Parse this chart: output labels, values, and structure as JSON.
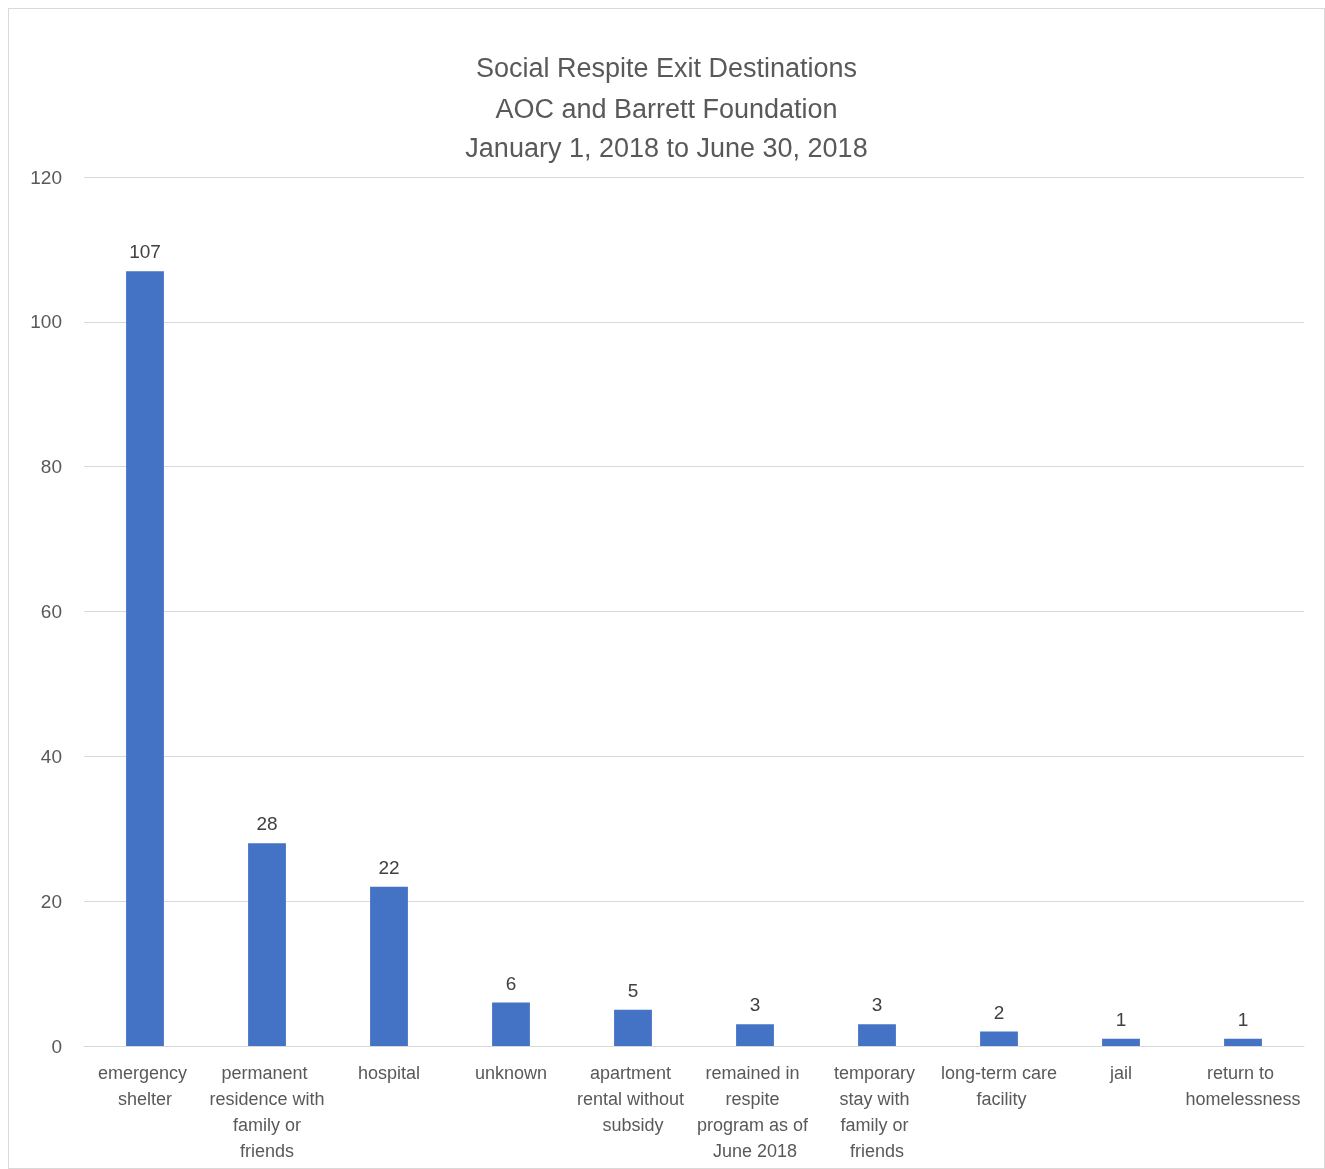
{
  "chart_data": {
    "type": "bar",
    "title": "Social Respite Exit Destinations",
    "subtitle": "AOC and Barrett Foundation\nJanuary 1, 2018 to June 30, 2018",
    "categories": [
      "emergency shelter",
      "permanent residence with family or friends",
      "hospital",
      "unknown",
      "apartment rental without subsidy",
      "remained in respite program as of June 2018",
      "temporary stay with family or friends",
      "long-term care facility",
      "jail",
      "return to homelessness"
    ],
    "values": [
      107,
      28,
      22,
      6,
      5,
      3,
      3,
      2,
      1,
      1
    ],
    "color": "#4472c4",
    "ylim": [
      0,
      120
    ],
    "yticks": [
      0,
      20,
      40,
      60,
      80,
      100,
      120
    ],
    "grid": "y",
    "data_labels": true
  }
}
